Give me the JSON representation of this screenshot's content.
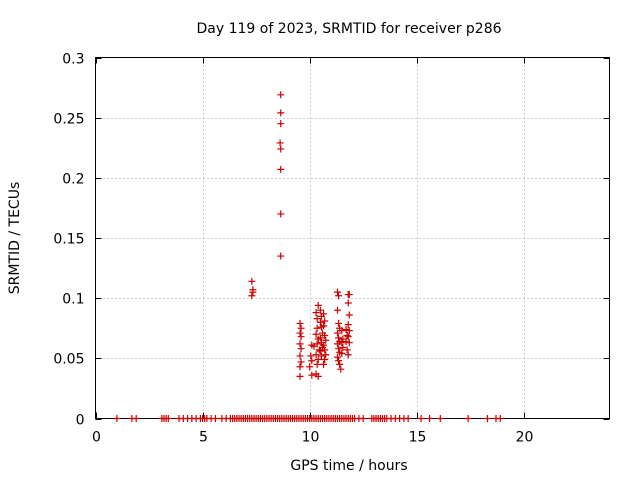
{
  "chart_data": {
    "type": "scatter",
    "title": "Day 119 of 2023, SRMTID for receiver p286",
    "xlabel": "GPS time / hours",
    "ylabel": "SRMTID / TECUs",
    "xlim": [
      0,
      24
    ],
    "ylim": [
      0,
      0.3
    ],
    "xticks": [
      0,
      5,
      10,
      15,
      20
    ],
    "xtick_labels": [
      "0",
      "5",
      "10",
      "15",
      "20"
    ],
    "yticks": [
      0,
      0.05,
      0.1,
      0.15,
      0.2,
      0.25,
      0.3
    ],
    "ytick_labels": [
      "0",
      "0.05",
      "0.1",
      "0.15",
      "0.2",
      "0.25",
      "0.3"
    ],
    "grid": true,
    "legend": "none",
    "marker": "+",
    "color": "#cc0000",
    "series": [
      {
        "name": "SRMTID",
        "points": [
          [
            1.0,
            0
          ],
          [
            1.7,
            0
          ],
          [
            1.9,
            0
          ],
          [
            3.1,
            0
          ],
          [
            3.2,
            0
          ],
          [
            3.3,
            0
          ],
          [
            3.4,
            0
          ],
          [
            3.9,
            0
          ],
          [
            4.1,
            0
          ],
          [
            4.3,
            0
          ],
          [
            4.5,
            0
          ],
          [
            4.7,
            0
          ],
          [
            4.9,
            0
          ],
          [
            5.0,
            0
          ],
          [
            5.1,
            0
          ],
          [
            5.2,
            0
          ],
          [
            5.4,
            0
          ],
          [
            5.6,
            0
          ],
          [
            5.9,
            0
          ],
          [
            6.1,
            0
          ],
          [
            6.3,
            0
          ],
          [
            6.4,
            0
          ],
          [
            6.5,
            0
          ],
          [
            6.6,
            0
          ],
          [
            6.7,
            0
          ],
          [
            6.8,
            0
          ],
          [
            6.9,
            0
          ],
          [
            7.0,
            0
          ],
          [
            7.1,
            0
          ],
          [
            7.2,
            0
          ],
          [
            7.3,
            0
          ],
          [
            7.4,
            0
          ],
          [
            7.5,
            0
          ],
          [
            7.6,
            0
          ],
          [
            7.7,
            0
          ],
          [
            7.8,
            0
          ],
          [
            7.9,
            0
          ],
          [
            8.0,
            0
          ],
          [
            8.1,
            0
          ],
          [
            8.2,
            0
          ],
          [
            8.3,
            0
          ],
          [
            8.4,
            0
          ],
          [
            8.5,
            0
          ],
          [
            8.6,
            0
          ],
          [
            8.7,
            0
          ],
          [
            8.8,
            0
          ],
          [
            8.9,
            0
          ],
          [
            9.0,
            0
          ],
          [
            9.1,
            0
          ],
          [
            9.2,
            0
          ],
          [
            9.3,
            0
          ],
          [
            9.4,
            0
          ],
          [
            9.5,
            0
          ],
          [
            9.6,
            0
          ],
          [
            9.7,
            0
          ],
          [
            9.8,
            0
          ],
          [
            9.9,
            0
          ],
          [
            10.0,
            0
          ],
          [
            10.1,
            0
          ],
          [
            10.2,
            0
          ],
          [
            10.3,
            0
          ],
          [
            10.4,
            0
          ],
          [
            10.5,
            0
          ],
          [
            10.6,
            0
          ],
          [
            10.7,
            0
          ],
          [
            10.8,
            0
          ],
          [
            10.9,
            0
          ],
          [
            11.0,
            0
          ],
          [
            11.1,
            0
          ],
          [
            11.2,
            0
          ],
          [
            11.3,
            0
          ],
          [
            11.4,
            0
          ],
          [
            11.5,
            0
          ],
          [
            11.6,
            0
          ],
          [
            11.7,
            0
          ],
          [
            11.8,
            0
          ],
          [
            11.9,
            0
          ],
          [
            12.0,
            0
          ],
          [
            12.1,
            0
          ],
          [
            12.3,
            0
          ],
          [
            12.5,
            0
          ],
          [
            12.9,
            0
          ],
          [
            13.0,
            0
          ],
          [
            13.1,
            0
          ],
          [
            13.2,
            0
          ],
          [
            13.3,
            0
          ],
          [
            13.4,
            0
          ],
          [
            13.5,
            0
          ],
          [
            13.6,
            0
          ],
          [
            13.8,
            0
          ],
          [
            14.0,
            0
          ],
          [
            14.2,
            0
          ],
          [
            14.4,
            0
          ],
          [
            14.6,
            0
          ],
          [
            15.2,
            0
          ],
          [
            15.6,
            0
          ],
          [
            16.1,
            0
          ],
          [
            17.4,
            0
          ],
          [
            18.3,
            0
          ],
          [
            18.7,
            0
          ],
          [
            18.9,
            0
          ],
          [
            7.3,
            0.114
          ],
          [
            7.35,
            0.107
          ],
          [
            7.35,
            0.105
          ],
          [
            7.3,
            0.102
          ],
          [
            8.65,
            0.269
          ],
          [
            8.65,
            0.254
          ],
          [
            8.65,
            0.245
          ],
          [
            8.62,
            0.229
          ],
          [
            8.65,
            0.224
          ],
          [
            8.65,
            0.207
          ],
          [
            8.65,
            0.17
          ],
          [
            8.65,
            0.135
          ],
          [
            9.55,
            0.079
          ],
          [
            9.6,
            0.075
          ],
          [
            9.55,
            0.071
          ],
          [
            9.6,
            0.068
          ],
          [
            9.55,
            0.062
          ],
          [
            9.6,
            0.058
          ],
          [
            9.55,
            0.052
          ],
          [
            9.6,
            0.047
          ],
          [
            9.55,
            0.043
          ],
          [
            9.55,
            0.035
          ],
          [
            10.1,
            0.061
          ],
          [
            10.05,
            0.052
          ],
          [
            10.1,
            0.048
          ],
          [
            10.0,
            0.043
          ],
          [
            10.1,
            0.036
          ],
          [
            10.2,
            0.06
          ],
          [
            10.3,
            0.088
          ],
          [
            10.35,
            0.083
          ],
          [
            10.4,
            0.094
          ],
          [
            10.35,
            0.075
          ],
          [
            10.3,
            0.07
          ],
          [
            10.4,
            0.066
          ],
          [
            10.35,
            0.062
          ],
          [
            10.45,
            0.057
          ],
          [
            10.3,
            0.053
          ],
          [
            10.4,
            0.049
          ],
          [
            10.35,
            0.045
          ],
          [
            10.3,
            0.037
          ],
          [
            10.4,
            0.035
          ],
          [
            10.5,
            0.09
          ],
          [
            10.55,
            0.085
          ],
          [
            10.5,
            0.08
          ],
          [
            10.55,
            0.076
          ],
          [
            10.6,
            0.071
          ],
          [
            10.5,
            0.067
          ],
          [
            10.55,
            0.063
          ],
          [
            10.6,
            0.059
          ],
          [
            10.5,
            0.056
          ],
          [
            10.55,
            0.052
          ],
          [
            10.65,
            0.087
          ],
          [
            10.7,
            0.081
          ],
          [
            10.65,
            0.077
          ],
          [
            10.7,
            0.069
          ],
          [
            10.75,
            0.065
          ],
          [
            10.65,
            0.061
          ],
          [
            10.7,
            0.057
          ],
          [
            10.75,
            0.053
          ],
          [
            10.7,
            0.049
          ],
          [
            10.65,
            0.045
          ],
          [
            11.3,
            0.105
          ],
          [
            11.35,
            0.102
          ],
          [
            11.3,
            0.09
          ],
          [
            11.35,
            0.079
          ],
          [
            11.4,
            0.075
          ],
          [
            11.3,
            0.071
          ],
          [
            11.35,
            0.067
          ],
          [
            11.4,
            0.064
          ],
          [
            11.3,
            0.062
          ],
          [
            11.35,
            0.058
          ],
          [
            11.4,
            0.055
          ],
          [
            11.3,
            0.051
          ],
          [
            11.35,
            0.048
          ],
          [
            11.4,
            0.045
          ],
          [
            11.45,
            0.041
          ],
          [
            11.5,
            0.073
          ],
          [
            11.55,
            0.066
          ],
          [
            11.5,
            0.063
          ],
          [
            11.55,
            0.059
          ],
          [
            11.5,
            0.054
          ],
          [
            11.7,
            0.074
          ],
          [
            11.75,
            0.069
          ],
          [
            11.7,
            0.064
          ],
          [
            11.75,
            0.057
          ],
          [
            11.8,
            0.103
          ],
          [
            11.85,
            0.103
          ],
          [
            11.8,
            0.096
          ],
          [
            11.85,
            0.086
          ],
          [
            11.8,
            0.078
          ],
          [
            11.85,
            0.073
          ],
          [
            11.8,
            0.068
          ],
          [
            11.85,
            0.063
          ],
          [
            11.8,
            0.053
          ]
        ]
      }
    ]
  }
}
